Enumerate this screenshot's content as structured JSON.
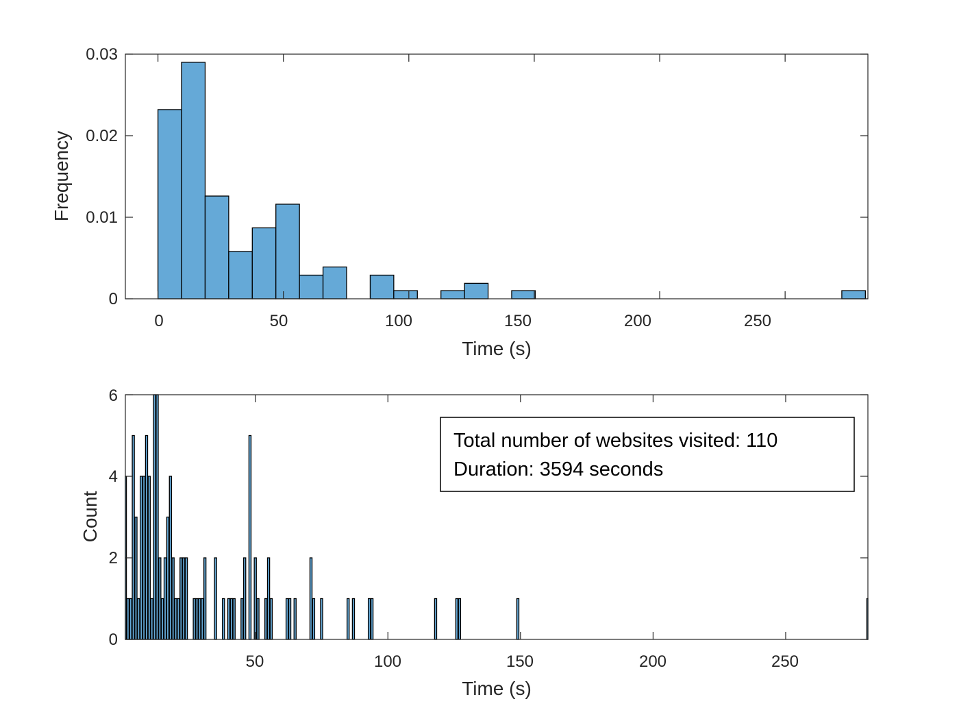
{
  "chart_data": [
    {
      "type": "bar",
      "subtype": "histogram",
      "xlabel": "Time (s)",
      "ylabel": "Frequency",
      "xlim": [
        -13,
        283
      ],
      "ylim": [
        0,
        0.03
      ],
      "xticks": [
        0,
        50,
        100,
        150,
        200,
        250
      ],
      "xtick_labels": [
        "0",
        "50",
        "100",
        "150",
        "200",
        "250"
      ],
      "yticks": [
        0,
        0.01,
        0.02,
        0.03
      ],
      "ytick_labels": [
        "0",
        "0.01",
        "0.02",
        "0.03"
      ],
      "grid": false,
      "bar_color": "#65A9D7",
      "edge_color": "#000000",
      "bin_width": 9.4,
      "bin_start": 0,
      "values": [
        0.0232,
        0.029,
        0.0126,
        0.0058,
        0.0087,
        0.0116,
        0.0029,
        0.0039,
        0,
        0.0029,
        0.001,
        0,
        0.001,
        0.0019,
        0,
        0.001,
        0,
        0,
        0,
        0,
        0,
        0,
        0,
        0,
        0,
        0,
        0,
        0,
        0,
        0.001
      ]
    },
    {
      "type": "bar",
      "xlabel": "Time (s)",
      "ylabel": "Count",
      "xlim": [
        1,
        281
      ],
      "ylim": [
        0,
        6
      ],
      "xticks": [
        50,
        100,
        150,
        200,
        250
      ],
      "xtick_labels": [
        "50",
        "100",
        "150",
        "200",
        "250"
      ],
      "yticks": [
        0,
        2,
        4,
        6
      ],
      "ytick_labels": [
        "0",
        "2",
        "4",
        "6"
      ],
      "grid": false,
      "bar_color": "#65A9D7",
      "edge_color": "#000000",
      "x": [
        1,
        2,
        3,
        4,
        5,
        6,
        7,
        8,
        9,
        10,
        11,
        12,
        13,
        14,
        15,
        16,
        17,
        18,
        19,
        20,
        21,
        22,
        23,
        24,
        27,
        28,
        29,
        30,
        31,
        35,
        38,
        40,
        41,
        42,
        45,
        46,
        48,
        50,
        51,
        54,
        55,
        56,
        62,
        63,
        65,
        71,
        72,
        75,
        85,
        87,
        93,
        94,
        118,
        126,
        127,
        149,
        281
      ],
      "values": [
        4,
        1,
        1,
        5,
        3,
        1,
        4,
        4,
        5,
        4,
        1,
        6,
        6,
        2,
        1,
        2,
        3,
        4,
        2,
        1,
        1,
        2,
        2,
        2,
        1,
        1,
        1,
        1,
        2,
        2,
        1,
        1,
        1,
        1,
        1,
        2,
        5,
        2,
        1,
        1,
        2,
        1,
        1,
        1,
        1,
        2,
        1,
        1,
        1,
        1,
        1,
        1,
        1,
        1,
        1,
        1,
        1
      ],
      "annotation": {
        "line1": "Total number of websites visited: 110",
        "line2": "Duration: 3594 seconds"
      }
    }
  ]
}
